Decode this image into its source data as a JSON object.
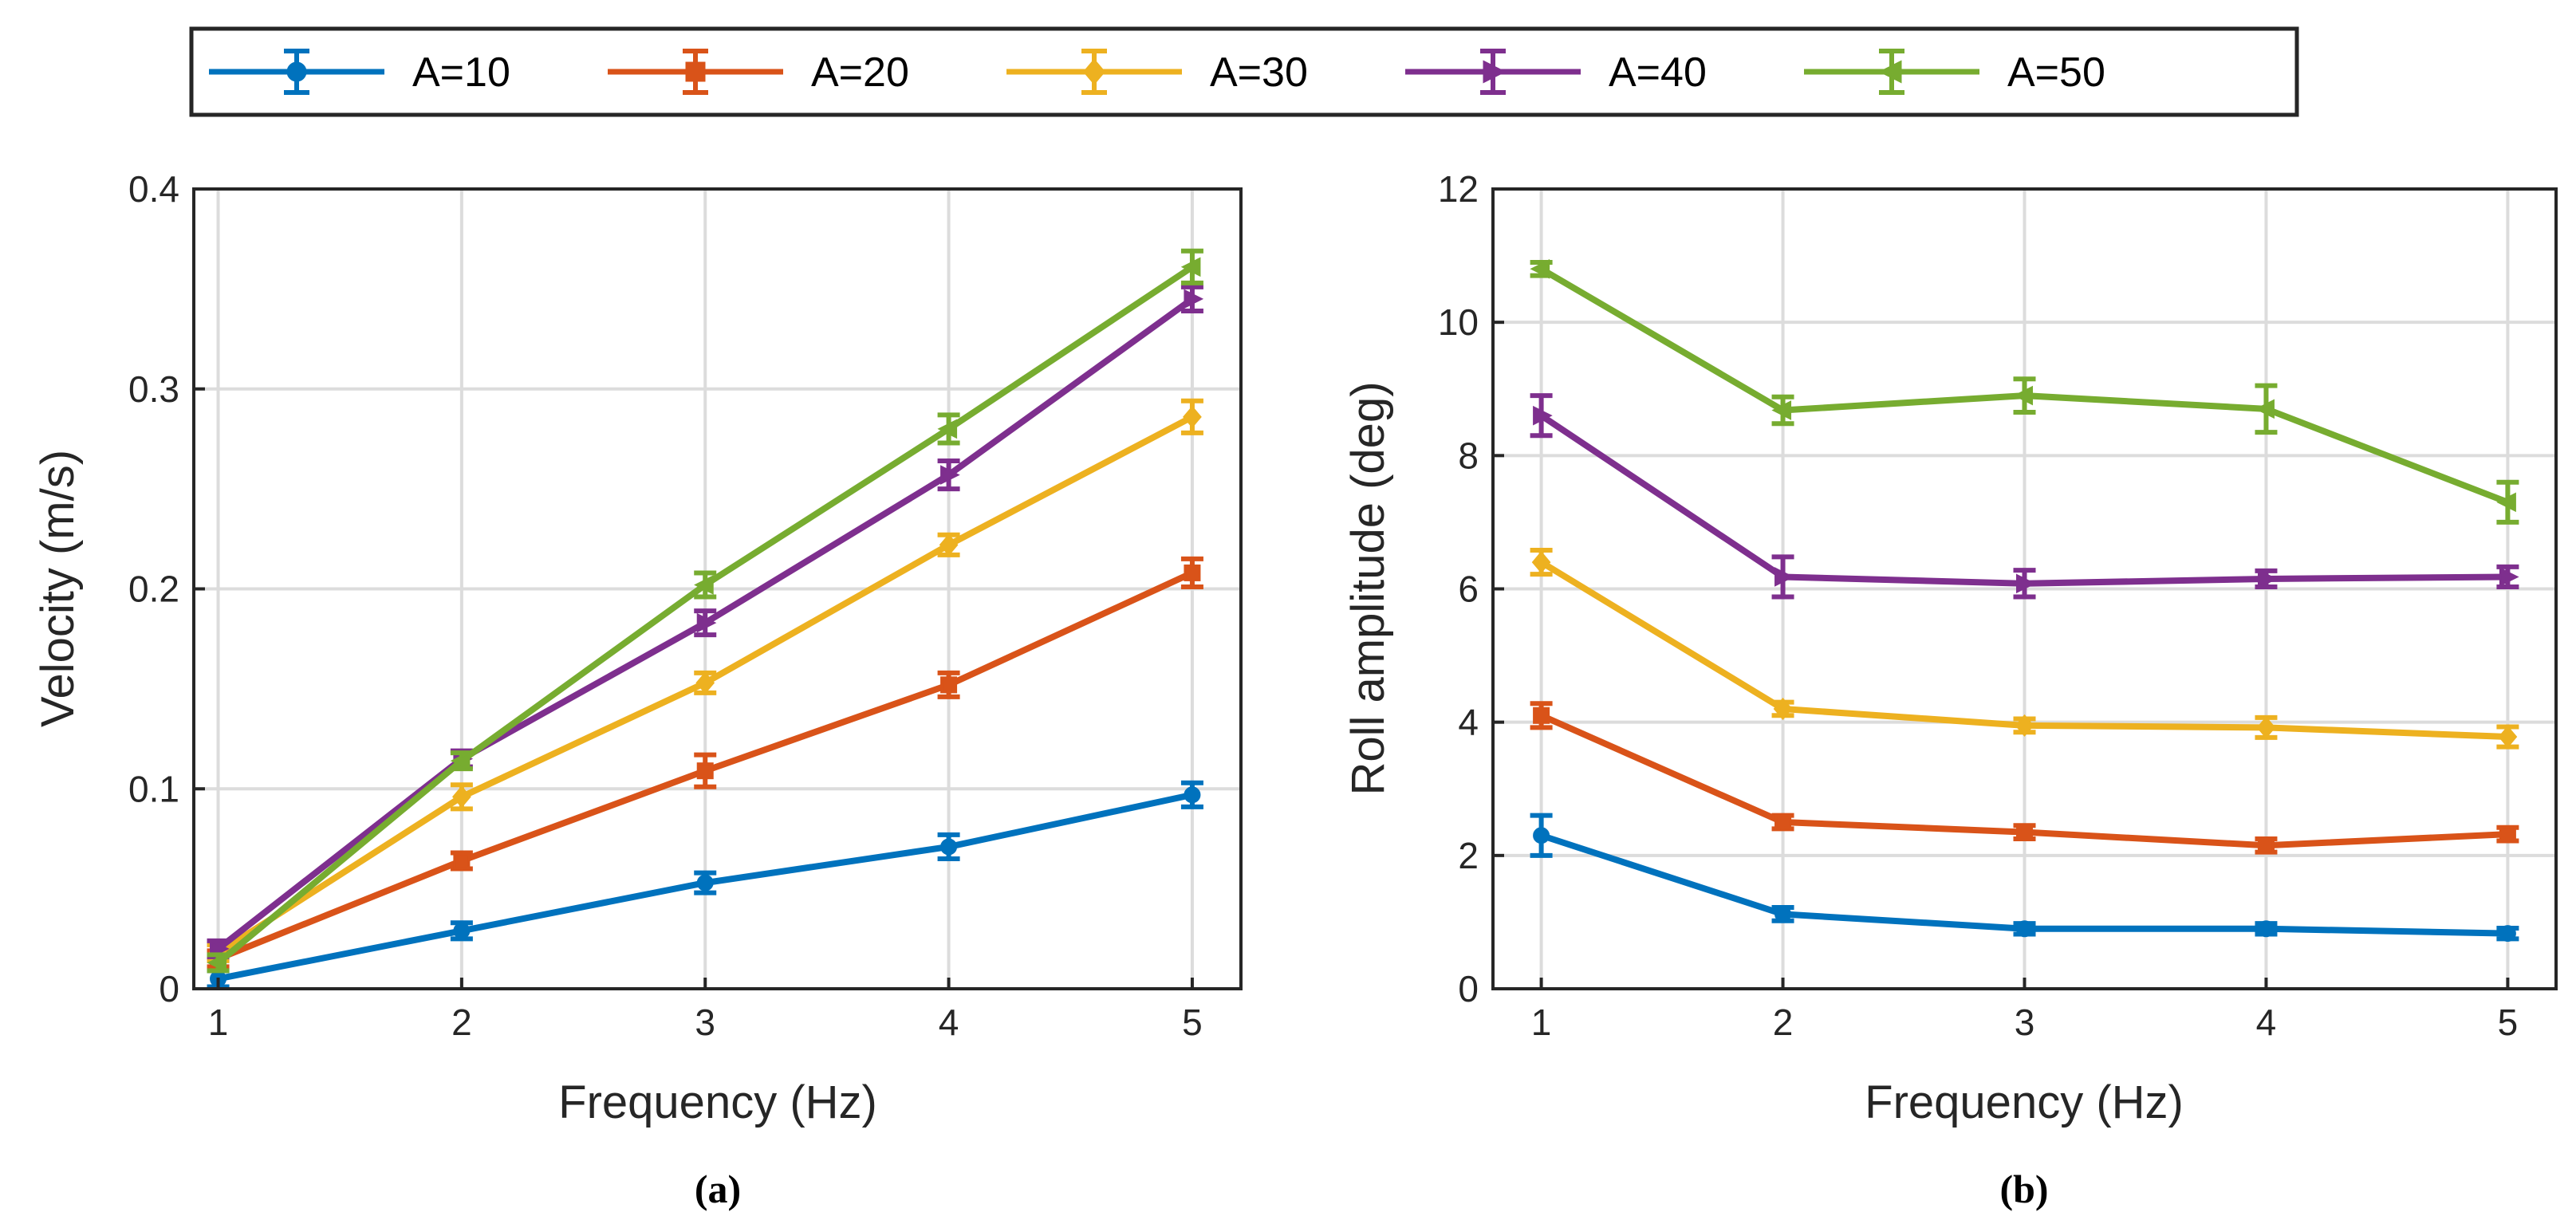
{
  "legend": {
    "entries": [
      {
        "label": "A=10",
        "color": "#0072BD",
        "marker": "circle"
      },
      {
        "label": "A=20",
        "color": "#D95319",
        "marker": "square"
      },
      {
        "label": "A=30",
        "color": "#EDB120",
        "marker": "diamond"
      },
      {
        "label": "A=40",
        "color": "#7E2F8E",
        "marker": "triangle-right"
      },
      {
        "label": "A=50",
        "color": "#77AC30",
        "marker": "triangle-left"
      }
    ]
  },
  "chart_data": [
    {
      "type": "line",
      "caption": "(a)",
      "title": "",
      "xlabel": "Frequency (Hz)",
      "ylabel": "Velocity (m/s)",
      "x": [
        1,
        2,
        3,
        4,
        5
      ],
      "xlim": [
        0.9,
        5.2
      ],
      "ylim": [
        0,
        0.4
      ],
      "xticks": [
        "1",
        "2",
        "3",
        "4",
        "5"
      ],
      "yticks": [
        "0",
        "0.1",
        "0.2",
        "0.3",
        "0.4"
      ],
      "grid": true,
      "series": [
        {
          "name": "A=10",
          "values": [
            0.005,
            0.029,
            0.053,
            0.071,
            0.097
          ],
          "err": [
            0.004,
            0.004,
            0.005,
            0.006,
            0.006
          ]
        },
        {
          "name": "A=20",
          "values": [
            0.015,
            0.064,
            0.109,
            0.152,
            0.208
          ],
          "err": [
            0.004,
            0.004,
            0.008,
            0.006,
            0.007
          ]
        },
        {
          "name": "A=30",
          "values": [
            0.018,
            0.096,
            0.153,
            0.222,
            0.286
          ],
          "err": [
            0.004,
            0.006,
            0.005,
            0.005,
            0.008
          ]
        },
        {
          "name": "A=40",
          "values": [
            0.02,
            0.115,
            0.183,
            0.257,
            0.345
          ],
          "err": [
            0.004,
            0.004,
            0.006,
            0.007,
            0.006
          ]
        },
        {
          "name": "A=50",
          "values": [
            0.013,
            0.114,
            0.202,
            0.28,
            0.361
          ],
          "err": [
            0.004,
            0.004,
            0.006,
            0.007,
            0.008
          ]
        }
      ]
    },
    {
      "type": "line",
      "caption": "(b)",
      "title": "",
      "xlabel": "Frequency (Hz)",
      "ylabel": "Roll amplitude (deg)",
      "x": [
        1,
        2,
        3,
        4,
        5
      ],
      "xlim": [
        0.8,
        5.2
      ],
      "ylim": [
        0,
        12
      ],
      "xticks": [
        "1",
        "2",
        "3",
        "4",
        "5"
      ],
      "yticks": [
        "0",
        "2",
        "4",
        "6",
        "8",
        "10",
        "12"
      ],
      "grid": true,
      "series": [
        {
          "name": "A=10",
          "values": [
            2.3,
            1.12,
            0.9,
            0.9,
            0.83
          ],
          "err": [
            0.3,
            0.1,
            0.08,
            0.08,
            0.08
          ]
        },
        {
          "name": "A=20",
          "values": [
            4.1,
            2.5,
            2.35,
            2.15,
            2.32
          ],
          "err": [
            0.18,
            0.1,
            0.1,
            0.1,
            0.1
          ]
        },
        {
          "name": "A=30",
          "values": [
            6.4,
            4.2,
            3.95,
            3.92,
            3.78
          ],
          "err": [
            0.18,
            0.1,
            0.1,
            0.15,
            0.15
          ]
        },
        {
          "name": "A=40",
          "values": [
            8.6,
            6.18,
            6.08,
            6.15,
            6.18
          ],
          "err": [
            0.3,
            0.3,
            0.2,
            0.12,
            0.15
          ]
        },
        {
          "name": "A=50",
          "values": [
            10.8,
            8.68,
            8.9,
            8.7,
            7.3
          ],
          "err": [
            0.1,
            0.2,
            0.25,
            0.35,
            0.3
          ]
        }
      ]
    }
  ]
}
